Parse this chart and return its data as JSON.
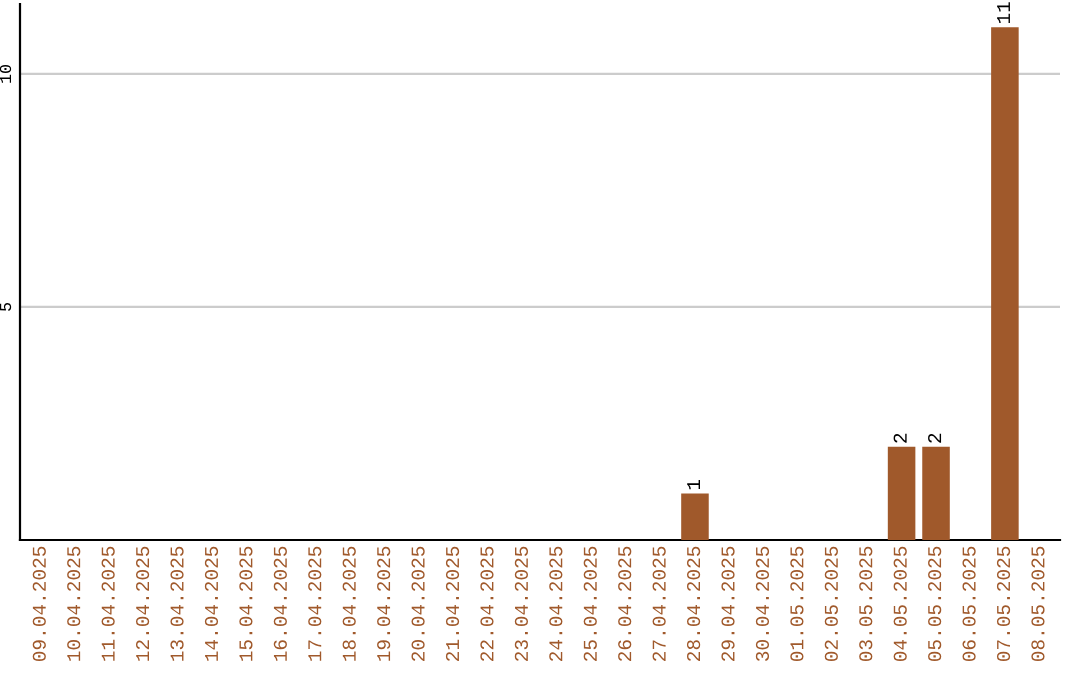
{
  "chart_data": {
    "type": "bar",
    "categories": [
      "09.04.2025",
      "10.04.2025",
      "11.04.2025",
      "12.04.2025",
      "13.04.2025",
      "14.04.2025",
      "15.04.2025",
      "16.04.2025",
      "17.04.2025",
      "18.04.2025",
      "19.04.2025",
      "20.04.2025",
      "21.04.2025",
      "22.04.2025",
      "23.04.2025",
      "24.04.2025",
      "25.04.2025",
      "26.04.2025",
      "27.04.2025",
      "28.04.2025",
      "29.04.2025",
      "30.04.2025",
      "01.05.2025",
      "02.05.2025",
      "03.05.2025",
      "04.05.2025",
      "05.05.2025",
      "06.05.2025",
      "07.05.2025",
      "08.05.2025"
    ],
    "values": [
      0,
      0,
      0,
      0,
      0,
      0,
      0,
      0,
      0,
      0,
      0,
      0,
      0,
      0,
      0,
      0,
      0,
      0,
      0,
      1,
      0,
      0,
      0,
      0,
      0,
      2,
      2,
      0,
      11,
      0
    ],
    "value_labels": [
      null,
      null,
      null,
      null,
      null,
      null,
      null,
      null,
      null,
      null,
      null,
      null,
      null,
      null,
      null,
      null,
      null,
      null,
      null,
      "1",
      null,
      null,
      null,
      null,
      null,
      "2",
      "2",
      null,
      "11",
      null
    ],
    "color": "#a0592b",
    "ylim": [
      0,
      11.5
    ],
    "yticks": [
      5,
      10
    ],
    "grid": "y"
  }
}
